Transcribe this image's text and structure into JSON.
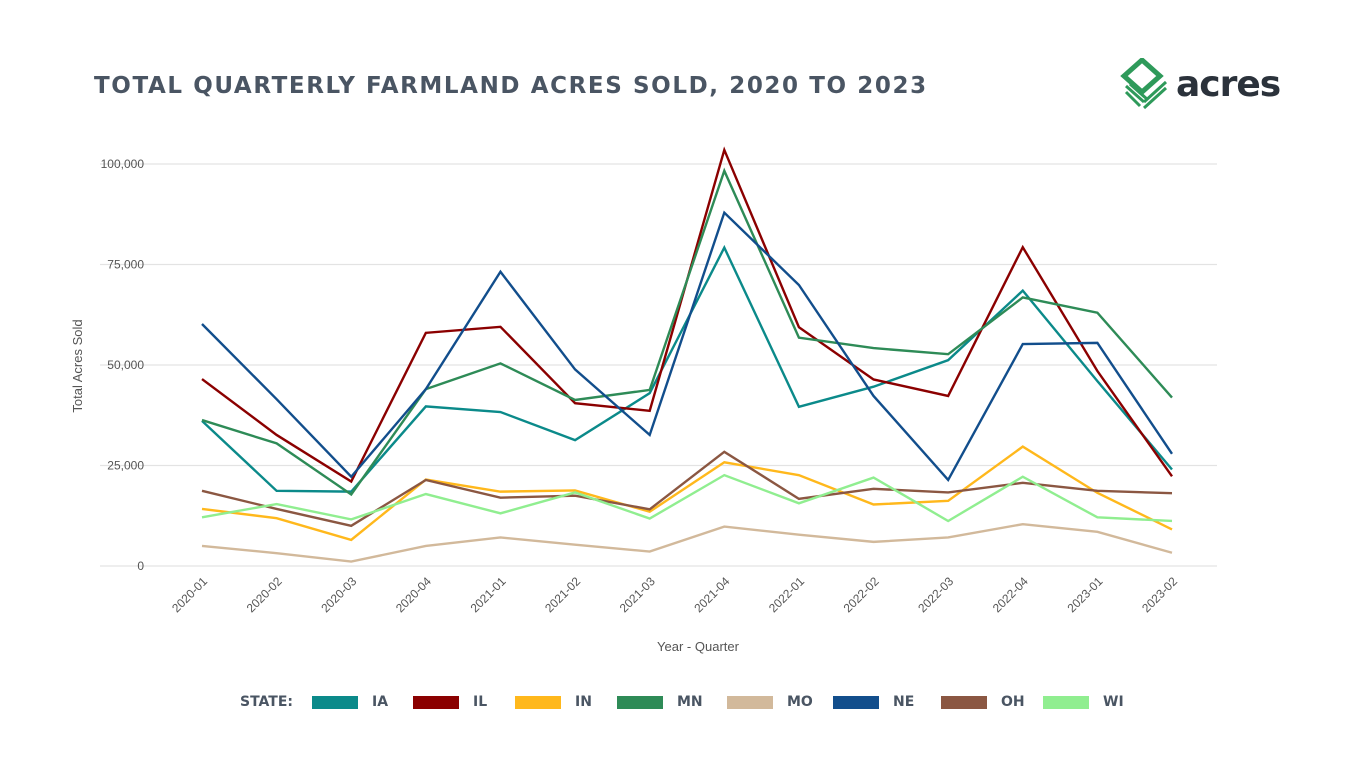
{
  "logo_text": "acres",
  "chart_data": {
    "type": "line",
    "title": "TOTAL QUARTERLY FARMLAND ACRES SOLD, 2020 TO 2023",
    "xlabel": "Year - Quarter",
    "ylabel": "Total Acres Sold",
    "ylim": [
      0,
      100000
    ],
    "yticks": [
      0,
      25000,
      50000,
      75000,
      100000
    ],
    "ytick_labels": [
      "0",
      "25,000",
      "50,000",
      "75,000",
      "100,000"
    ],
    "grid": true,
    "legend_position": "bottom",
    "legend_title": "STATE:",
    "categories": [
      "2020-01",
      "2020-02",
      "2020-03",
      "2020-04",
      "2021-01",
      "2021-02",
      "2021-03",
      "2021-04",
      "2022-01",
      "2022-02",
      "2022-03",
      "2022-04",
      "2023-01",
      "2023-02"
    ],
    "series": [
      {
        "name": "IA",
        "color": "#0b8a8a",
        "values": [
          36100,
          18700,
          18500,
          39700,
          38300,
          31300,
          43000,
          79200,
          39600,
          44600,
          51200,
          68500,
          46000,
          24000
        ]
      },
      {
        "name": "IL",
        "color": "#8b0000",
        "values": [
          46500,
          32600,
          21000,
          58000,
          59500,
          40500,
          38600,
          103500,
          59400,
          46400,
          42300,
          79300,
          48500,
          22300
        ]
      },
      {
        "name": "IN",
        "color": "#ffb81c",
        "values": [
          14200,
          11900,
          6500,
          21500,
          18500,
          18800,
          13500,
          25800,
          22600,
          15300,
          16200,
          29700,
          18200,
          9100
        ]
      },
      {
        "name": "MN",
        "color": "#2e8b57",
        "values": [
          36300,
          30500,
          17800,
          44000,
          50400,
          41300,
          43800,
          98300,
          56800,
          54200,
          52700,
          66800,
          63000,
          41900
        ]
      },
      {
        "name": "MO",
        "color": "#d2b99b",
        "values": [
          5000,
          3200,
          1100,
          5000,
          7100,
          5300,
          3600,
          9800,
          7800,
          6000,
          7100,
          10400,
          8500,
          3300
        ]
      },
      {
        "name": "NE",
        "color": "#124e8c",
        "values": [
          60200,
          41500,
          22200,
          44000,
          73200,
          48900,
          32600,
          87900,
          69900,
          42300,
          21400,
          55200,
          55500,
          27900
        ]
      },
      {
        "name": "OH",
        "color": "#8b5742",
        "values": [
          18700,
          14200,
          10000,
          21400,
          17000,
          17500,
          14100,
          28400,
          16700,
          19200,
          18300,
          20700,
          18700,
          18100
        ]
      },
      {
        "name": "WI",
        "color": "#90ee90",
        "values": [
          12100,
          15400,
          11600,
          17900,
          13100,
          18300,
          11800,
          22600,
          15600,
          22000,
          11200,
          22200,
          12100,
          11200
        ]
      }
    ]
  }
}
